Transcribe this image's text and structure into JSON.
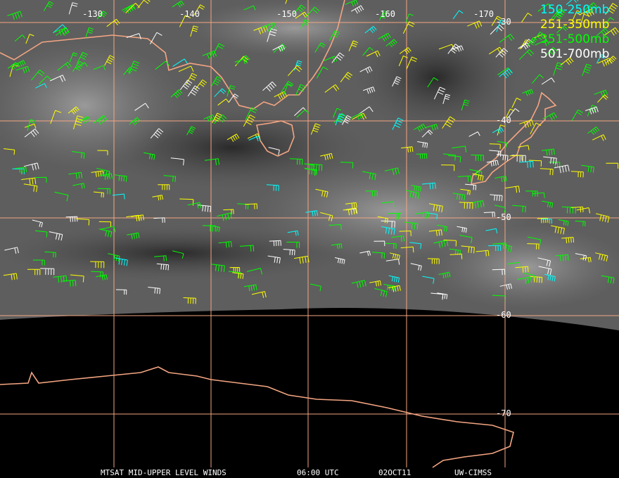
{
  "legend": [
    {
      "label": "150-250mb",
      "color": "#00ffff"
    },
    {
      "label": "251-350mb",
      "color": "#ffff00"
    },
    {
      "label": "351-500mb",
      "color": "#00ff00"
    },
    {
      "label": "501-700mb",
      "color": "#ffffff"
    }
  ],
  "grid": {
    "lon_labels": [
      "-130",
      "-140",
      "-150",
      "-160",
      "-170"
    ],
    "lat_labels": [
      "-30",
      "-40",
      "-50",
      "-60",
      "-70"
    ]
  },
  "footer": {
    "satellite": "MTSAT MID-UPPER LEVEL WINDS",
    "time": "06:00 UTC",
    "date": "02OCT11",
    "source": "UW-CIMSS"
  }
}
